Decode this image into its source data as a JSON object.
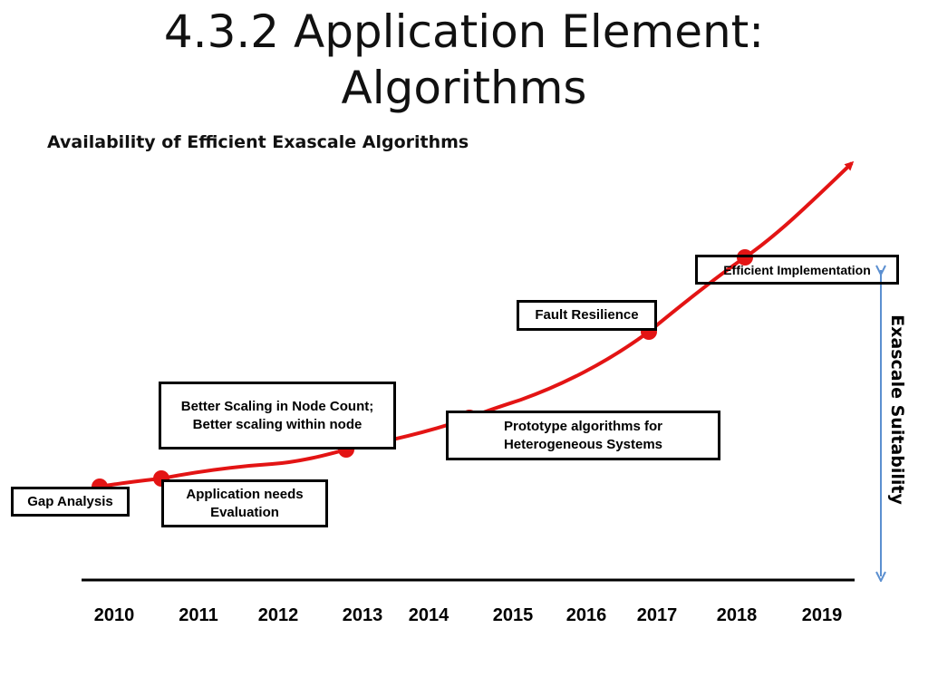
{
  "title": {
    "line1": "4.3.2 Application Element:",
    "line2": "Algorithms"
  },
  "subtitle": "Availability of Efficient Exascale Algorithms",
  "vertical_label": "Exascale Suitability",
  "milestones": [
    {
      "id": "gap-analysis",
      "label": "Gap Analysis"
    },
    {
      "id": "application-needs-evaluation",
      "label": "Application needs Evaluation"
    },
    {
      "id": "better-scaling",
      "label": "Better Scaling in Node Count; Better scaling within node"
    },
    {
      "id": "prototype-algorithms",
      "label": "Prototype algorithms for Heterogeneous Systems"
    },
    {
      "id": "fault-resilience",
      "label": "Fault Resilience"
    },
    {
      "id": "efficient-implementation",
      "label": "Efficient Implementation"
    }
  ],
  "years": [
    "2010",
    "2011",
    "2012",
    "2013",
    "2014",
    "2015",
    "2016",
    "2017",
    "2018",
    "2019"
  ],
  "colors": {
    "curve": "#e31414",
    "milestone_dot": "#e31414",
    "vertical_arrow": "#5b8fd0",
    "baseline": "#000000"
  }
}
